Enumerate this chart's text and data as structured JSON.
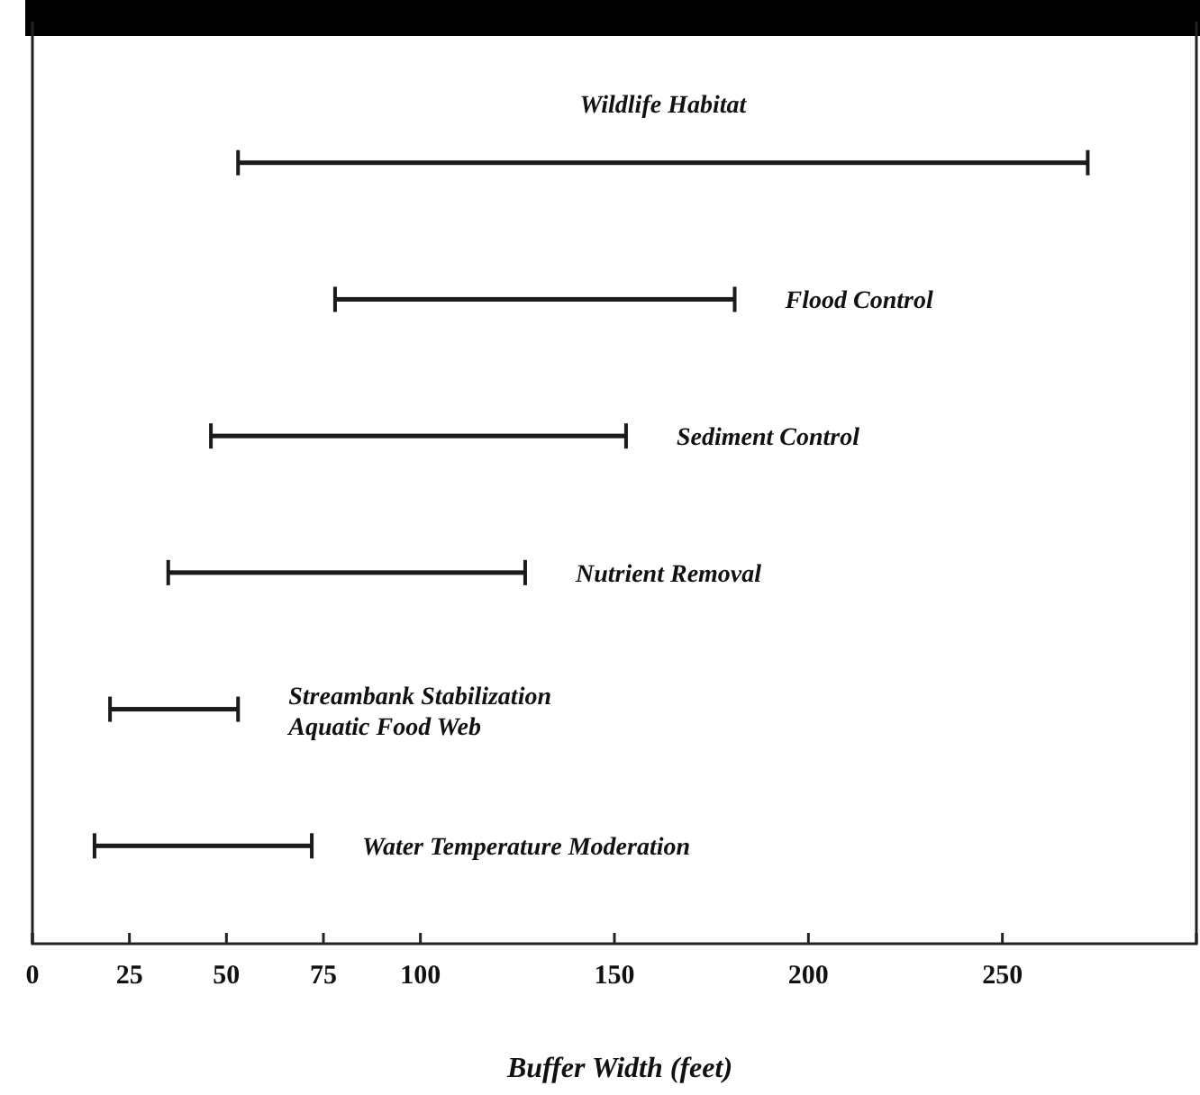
{
  "chart_data": {
    "type": "bar",
    "orientation": "horizontal",
    "xlabel": "Buffer Width (feet)",
    "categories": [
      "Wildlife Habitat",
      "Flood Control",
      "Sediment Control",
      "Nutrient Removal",
      "Streambank Stabilization\nAquatic Food Web",
      "Water Temperature Moderation"
    ],
    "base": [
      53,
      78,
      46,
      35,
      20,
      16
    ],
    "values": [
      219,
      103,
      107,
      92,
      33,
      56
    ],
    "color": "#1a1a1a",
    "xlim": [
      0,
      300
    ],
    "xticks": [
      0,
      25,
      50,
      75,
      100,
      150,
      200,
      250
    ],
    "tick_labels": "x",
    "grid": false
  }
}
